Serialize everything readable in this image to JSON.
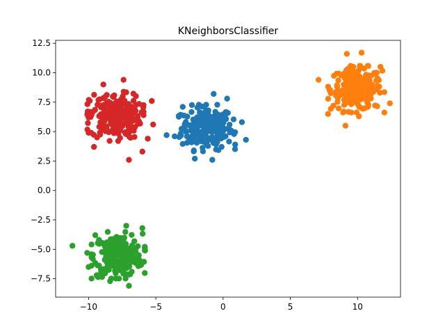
{
  "chart_data": {
    "type": "scatter",
    "title": "KNeighborsClassifier",
    "xlabel": "",
    "ylabel": "",
    "xlim": [
      -12.45,
      13.19
    ],
    "ylim": [
      -9.06,
      12.75
    ],
    "xticks": [
      -10,
      -5,
      0,
      5,
      10
    ],
    "xtick_labels": [
      "−10",
      "−5",
      "0",
      "5",
      "10"
    ],
    "yticks": [
      -7.5,
      -5.0,
      -2.5,
      0.0,
      2.5,
      5.0,
      7.5,
      10.0,
      12.5
    ],
    "ytick_labels": [
      "−7.5",
      "−5.0",
      "−2.5",
      "0.0",
      "2.5",
      "5.0",
      "7.5",
      "10.0",
      "12.5"
    ],
    "grid": false,
    "series": [
      {
        "color": "#1f77b4",
        "center": [
          -1.2,
          5.3
        ],
        "spread": [
          0.95,
          0.9
        ],
        "count": 220,
        "outliers": [
          [
            -4.2,
            4.7
          ],
          [
            1.7,
            4.3
          ],
          [
            -0.8,
            2.6
          ],
          [
            -0.7,
            8.2
          ],
          [
            0.3,
            7.8
          ],
          [
            -3.0,
            7.1
          ],
          [
            1.4,
            5.8
          ],
          [
            -2.1,
            2.7
          ],
          [
            -3.6,
            4.6
          ],
          [
            0.9,
            3.9
          ]
        ]
      },
      {
        "color": "#ff7f0e",
        "center": [
          9.9,
          8.6
        ],
        "spread": [
          0.95,
          0.9
        ],
        "count": 220,
        "outliers": [
          [
            7.1,
            9.4
          ],
          [
            12.4,
            7.4
          ],
          [
            9.1,
            5.5
          ],
          [
            9.2,
            11.6
          ],
          [
            10.3,
            11.7
          ],
          [
            7.8,
            6.5
          ],
          [
            11.7,
            10.5
          ],
          [
            8.2,
            7.2
          ],
          [
            10.1,
            6.3
          ]
        ]
      },
      {
        "color": "#2ca02c",
        "center": [
          -7.8,
          -5.5
        ],
        "spread": [
          0.9,
          0.9
        ],
        "count": 220,
        "outliers": [
          [
            -11.2,
            -4.7
          ],
          [
            -10.0,
            -6.5
          ],
          [
            -7.0,
            -8.1
          ],
          [
            -5.8,
            -5.1
          ],
          [
            -6.0,
            -3.2
          ],
          [
            -9.5,
            -3.8
          ],
          [
            -7.2,
            -3.0
          ],
          [
            -8.4,
            -7.7
          ],
          [
            -10.1,
            -5.3
          ],
          [
            -9.4,
            -7.2
          ]
        ]
      },
      {
        "color": "#d62728",
        "center": [
          -8.0,
          6.3
        ],
        "spread": [
          0.95,
          0.95
        ],
        "count": 220,
        "outliers": [
          [
            -9.6,
            3.7
          ],
          [
            -7.0,
            2.6
          ],
          [
            -6.0,
            3.3
          ],
          [
            -10.0,
            4.9
          ],
          [
            -5.2,
            5.6
          ],
          [
            -5.3,
            7.6
          ],
          [
            -7.4,
            9.4
          ],
          [
            -8.9,
            9.0
          ],
          [
            -5.6,
            4.4
          ],
          [
            -10.0,
            6.2
          ],
          [
            -7.8,
            4.2
          ]
        ]
      }
    ]
  }
}
